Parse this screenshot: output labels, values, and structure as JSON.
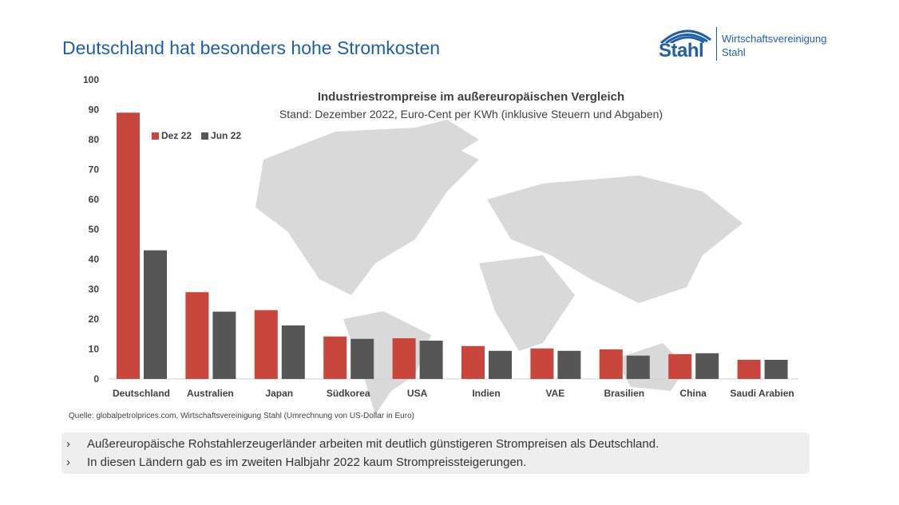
{
  "header": {
    "title": "Deutschland hat besonders hohe Stromkosten"
  },
  "logo": {
    "word": "Stahl",
    "text_line1": "Wirtschaftsvereinigung",
    "text_line2": "Stahl",
    "color": "#1f5fa8"
  },
  "chart_data": {
    "type": "bar",
    "title": "Industriestrompreise im außereuropäischen Vergleich",
    "subtitle": "Stand: Dezember 2022, Euro-Cent per KWh (inklusive Steuern und Abgaben)",
    "categories": [
      "Deutschland",
      "Australien",
      "Japan",
      "Südkorea",
      "USA",
      "Indien",
      "VAE",
      "Brasilien",
      "China",
      "Saudi Arabien"
    ],
    "series": [
      {
        "name": "Dez 22",
        "color": "#c9463d",
        "values": [
          89,
          29,
          23,
          14.2,
          13.6,
          11,
          10.2,
          9.9,
          8.3,
          6.4
        ]
      },
      {
        "name": "Jun 22",
        "color": "#565656",
        "values": [
          43,
          22.5,
          17.9,
          13.4,
          12.8,
          9.4,
          9.4,
          7.8,
          8.6,
          6.4
        ]
      }
    ],
    "ylim": [
      0,
      100
    ],
    "yticks": [
      0,
      10,
      20,
      30,
      40,
      50,
      60,
      70,
      80,
      90,
      100
    ],
    "grid": false,
    "legend": "top-left",
    "background": "world map (grey)"
  },
  "source": "Quelle: globalpetrolprices.com, Wirtschaftsvereinigung Stahl (Umrechnung von US-Dollar in Euro)",
  "bullets": {
    "marker": "›",
    "items": [
      "Außereuropäische Rohstahlerzeugerländer arbeiten mit deutlich günstigeren Strompreisen als Deutschland.",
      "In diesen Ländern gab es im zweiten Halbjahr 2022 kaum Strompreissteigerungen."
    ]
  }
}
